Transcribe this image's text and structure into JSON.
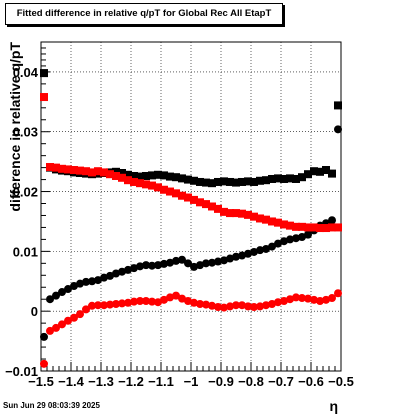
{
  "title": "Fitted difference in relative q/pT for Global Rec All EtapT",
  "footer": "Sun Jun 29 08:03:39 2025",
  "chart_data": {
    "type": "scatter",
    "title": "Fitted difference in relative q/pT for Global Rec All EtapT",
    "xlabel": "η",
    "ylabel": "difference in relative q/pT",
    "xlim": [
      -1.5,
      -0.5
    ],
    "ylim": [
      -0.01,
      0.045
    ],
    "grid": true,
    "x_ticks": [
      {
        "value": -1.5,
        "label": "−1.5"
      },
      {
        "value": -1.4,
        "label": "−1.4"
      },
      {
        "value": -1.3,
        "label": "−1.3"
      },
      {
        "value": -1.2,
        "label": "−1.2"
      },
      {
        "value": -1.1,
        "label": "−1.1"
      },
      {
        "value": -1.0,
        "label": "−1"
      },
      {
        "value": -0.9,
        "label": "−0.9"
      },
      {
        "value": -0.8,
        "label": "−0.8"
      },
      {
        "value": -0.7,
        "label": "−0.7"
      },
      {
        "value": -0.6,
        "label": "−0.6"
      },
      {
        "value": -0.5,
        "label": "−0.5"
      }
    ],
    "y_ticks": [
      {
        "value": -0.01,
        "label": "−0.01"
      },
      {
        "value": 0.0,
        "label": "0"
      },
      {
        "value": 0.01,
        "label": "0.01"
      },
      {
        "value": 0.02,
        "label": "0.02"
      },
      {
        "value": 0.03,
        "label": "0.03"
      },
      {
        "value": 0.04,
        "label": "0.04"
      }
    ],
    "series": [
      {
        "color": "#000000",
        "marker": "square",
        "points": [
          [
            -1.49,
            0.0398
          ],
          [
            -1.47,
            0.024
          ],
          [
            -1.45,
            0.0237
          ],
          [
            -1.43,
            0.0235
          ],
          [
            -1.41,
            0.0234
          ],
          [
            -1.39,
            0.0232
          ],
          [
            -1.37,
            0.0231
          ],
          [
            -1.35,
            0.023
          ],
          [
            -1.33,
            0.0229
          ],
          [
            -1.31,
            0.023
          ],
          [
            -1.29,
            0.0231
          ],
          [
            -1.27,
            0.0232
          ],
          [
            -1.25,
            0.0233
          ],
          [
            -1.23,
            0.0231
          ],
          [
            -1.21,
            0.0228
          ],
          [
            -1.19,
            0.0226
          ],
          [
            -1.17,
            0.0225
          ],
          [
            -1.15,
            0.0226
          ],
          [
            -1.13,
            0.0227
          ],
          [
            -1.11,
            0.0228
          ],
          [
            -1.09,
            0.0227
          ],
          [
            -1.07,
            0.0225
          ],
          [
            -1.05,
            0.0224
          ],
          [
            -1.03,
            0.0222
          ],
          [
            -1.01,
            0.022
          ],
          [
            -0.99,
            0.0218
          ],
          [
            -0.97,
            0.0216
          ],
          [
            -0.95,
            0.0215
          ],
          [
            -0.93,
            0.0214
          ],
          [
            -0.91,
            0.0216
          ],
          [
            -0.89,
            0.0217
          ],
          [
            -0.87,
            0.0216
          ],
          [
            -0.85,
            0.0215
          ],
          [
            -0.83,
            0.0216
          ],
          [
            -0.81,
            0.0217
          ],
          [
            -0.79,
            0.0216
          ],
          [
            -0.77,
            0.0218
          ],
          [
            -0.75,
            0.0219
          ],
          [
            -0.73,
            0.0221
          ],
          [
            -0.71,
            0.0222
          ],
          [
            -0.69,
            0.0221
          ],
          [
            -0.67,
            0.0222
          ],
          [
            -0.65,
            0.0221
          ],
          [
            -0.63,
            0.0224
          ],
          [
            -0.61,
            0.0229
          ],
          [
            -0.59,
            0.0234
          ],
          [
            -0.57,
            0.0233
          ],
          [
            -0.55,
            0.0236
          ],
          [
            -0.53,
            0.023
          ],
          [
            -0.51,
            0.0344
          ]
        ]
      },
      {
        "color": "#000000",
        "marker": "circle",
        "points": [
          [
            -1.49,
            -0.0043
          ],
          [
            -1.47,
            0.002
          ],
          [
            -1.45,
            0.0026
          ],
          [
            -1.43,
            0.0032
          ],
          [
            -1.41,
            0.0037
          ],
          [
            -1.39,
            0.0042
          ],
          [
            -1.37,
            0.0046
          ],
          [
            -1.35,
            0.0049
          ],
          [
            -1.33,
            0.005
          ],
          [
            -1.31,
            0.0052
          ],
          [
            -1.29,
            0.0056
          ],
          [
            -1.27,
            0.0059
          ],
          [
            -1.25,
            0.0063
          ],
          [
            -1.23,
            0.0066
          ],
          [
            -1.21,
            0.0069
          ],
          [
            -1.19,
            0.0072
          ],
          [
            -1.17,
            0.0075
          ],
          [
            -1.15,
            0.0077
          ],
          [
            -1.13,
            0.0076
          ],
          [
            -1.11,
            0.0077
          ],
          [
            -1.09,
            0.0079
          ],
          [
            -1.07,
            0.0081
          ],
          [
            -1.05,
            0.0084
          ],
          [
            -1.03,
            0.0086
          ],
          [
            -1.01,
            0.008
          ],
          [
            -0.99,
            0.0074
          ],
          [
            -0.97,
            0.0077
          ],
          [
            -0.95,
            0.008
          ],
          [
            -0.93,
            0.0081
          ],
          [
            -0.91,
            0.0083
          ],
          [
            -0.89,
            0.0085
          ],
          [
            -0.87,
            0.0088
          ],
          [
            -0.85,
            0.0091
          ],
          [
            -0.83,
            0.0093
          ],
          [
            -0.81,
            0.0096
          ],
          [
            -0.79,
            0.0099
          ],
          [
            -0.77,
            0.0102
          ],
          [
            -0.75,
            0.0104
          ],
          [
            -0.73,
            0.0108
          ],
          [
            -0.71,
            0.0113
          ],
          [
            -0.69,
            0.0117
          ],
          [
            -0.67,
            0.012
          ],
          [
            -0.65,
            0.0122
          ],
          [
            -0.63,
            0.0124
          ],
          [
            -0.61,
            0.0128
          ],
          [
            -0.59,
            0.0135
          ],
          [
            -0.57,
            0.0143
          ],
          [
            -0.55,
            0.0147
          ],
          [
            -0.53,
            0.0152
          ],
          [
            -0.51,
            0.0304
          ]
        ]
      },
      {
        "color": "#ff0000",
        "marker": "square",
        "points": [
          [
            -1.49,
            0.0358
          ],
          [
            -1.47,
            0.0241
          ],
          [
            -1.45,
            0.024
          ],
          [
            -1.43,
            0.0238
          ],
          [
            -1.41,
            0.0237
          ],
          [
            -1.39,
            0.0236
          ],
          [
            -1.37,
            0.0235
          ],
          [
            -1.35,
            0.0234
          ],
          [
            -1.33,
            0.0232
          ],
          [
            -1.31,
            0.0234
          ],
          [
            -1.29,
            0.0232
          ],
          [
            -1.27,
            0.0229
          ],
          [
            -1.25,
            0.0226
          ],
          [
            -1.23,
            0.0223
          ],
          [
            -1.21,
            0.0219
          ],
          [
            -1.19,
            0.0216
          ],
          [
            -1.17,
            0.0214
          ],
          [
            -1.15,
            0.0212
          ],
          [
            -1.13,
            0.021
          ],
          [
            -1.11,
            0.0207
          ],
          [
            -1.09,
            0.0203
          ],
          [
            -1.07,
            0.02
          ],
          [
            -1.05,
            0.0197
          ],
          [
            -1.03,
            0.0193
          ],
          [
            -1.01,
            0.019
          ],
          [
            -0.99,
            0.0186
          ],
          [
            -0.97,
            0.0182
          ],
          [
            -0.95,
            0.0179
          ],
          [
            -0.93,
            0.0175
          ],
          [
            -0.91,
            0.0171
          ],
          [
            -0.89,
            0.0166
          ],
          [
            -0.87,
            0.0164
          ],
          [
            -0.85,
            0.0164
          ],
          [
            -0.83,
            0.0163
          ],
          [
            -0.81,
            0.0161
          ],
          [
            -0.79,
            0.0158
          ],
          [
            -0.77,
            0.0155
          ],
          [
            -0.75,
            0.0153
          ],
          [
            -0.73,
            0.015
          ],
          [
            -0.71,
            0.0148
          ],
          [
            -0.69,
            0.0145
          ],
          [
            -0.67,
            0.0143
          ],
          [
            -0.65,
            0.0141
          ],
          [
            -0.63,
            0.0141
          ],
          [
            -0.61,
            0.014
          ],
          [
            -0.59,
            0.014
          ],
          [
            -0.57,
            0.0139
          ],
          [
            -0.55,
            0.0139
          ],
          [
            -0.53,
            0.014
          ],
          [
            -0.51,
            0.014
          ]
        ]
      },
      {
        "color": "#ff0000",
        "marker": "circle",
        "points": [
          [
            -1.49,
            -0.0088
          ],
          [
            -1.47,
            -0.0033
          ],
          [
            -1.45,
            -0.0028
          ],
          [
            -1.43,
            -0.0022
          ],
          [
            -1.41,
            -0.0016
          ],
          [
            -1.39,
            -0.0011
          ],
          [
            -1.37,
            -0.0005
          ],
          [
            -1.35,
            0.0003
          ],
          [
            -1.33,
            0.0009
          ],
          [
            -1.31,
            0.001
          ],
          [
            -1.29,
            0.001
          ],
          [
            -1.27,
            0.0011
          ],
          [
            -1.25,
            0.0012
          ],
          [
            -1.23,
            0.0013
          ],
          [
            -1.21,
            0.0014
          ],
          [
            -1.19,
            0.0016
          ],
          [
            -1.17,
            0.0017
          ],
          [
            -1.15,
            0.0017
          ],
          [
            -1.13,
            0.0016
          ],
          [
            -1.11,
            0.0015
          ],
          [
            -1.09,
            0.0019
          ],
          [
            -1.07,
            0.0023
          ],
          [
            -1.05,
            0.0026
          ],
          [
            -1.03,
            0.0021
          ],
          [
            -1.01,
            0.0017
          ],
          [
            -0.99,
            0.0014
          ],
          [
            -0.97,
            0.0012
          ],
          [
            -0.95,
            0.0011
          ],
          [
            -0.93,
            0.0009
          ],
          [
            -0.91,
            0.0007
          ],
          [
            -0.89,
            0.0006
          ],
          [
            -0.87,
            0.0008
          ],
          [
            -0.85,
            0.001
          ],
          [
            -0.83,
            0.001
          ],
          [
            -0.81,
            0.0008
          ],
          [
            -0.79,
            0.0007
          ],
          [
            -0.77,
            0.0008
          ],
          [
            -0.75,
            0.001
          ],
          [
            -0.73,
            0.0012
          ],
          [
            -0.71,
            0.0015
          ],
          [
            -0.69,
            0.0017
          ],
          [
            -0.67,
            0.002
          ],
          [
            -0.65,
            0.0023
          ],
          [
            -0.63,
            0.0022
          ],
          [
            -0.61,
            0.0021
          ],
          [
            -0.59,
            0.0019
          ],
          [
            -0.57,
            0.0017
          ],
          [
            -0.55,
            0.0019
          ],
          [
            -0.53,
            0.0022
          ],
          [
            -0.51,
            0.003
          ]
        ]
      }
    ]
  }
}
